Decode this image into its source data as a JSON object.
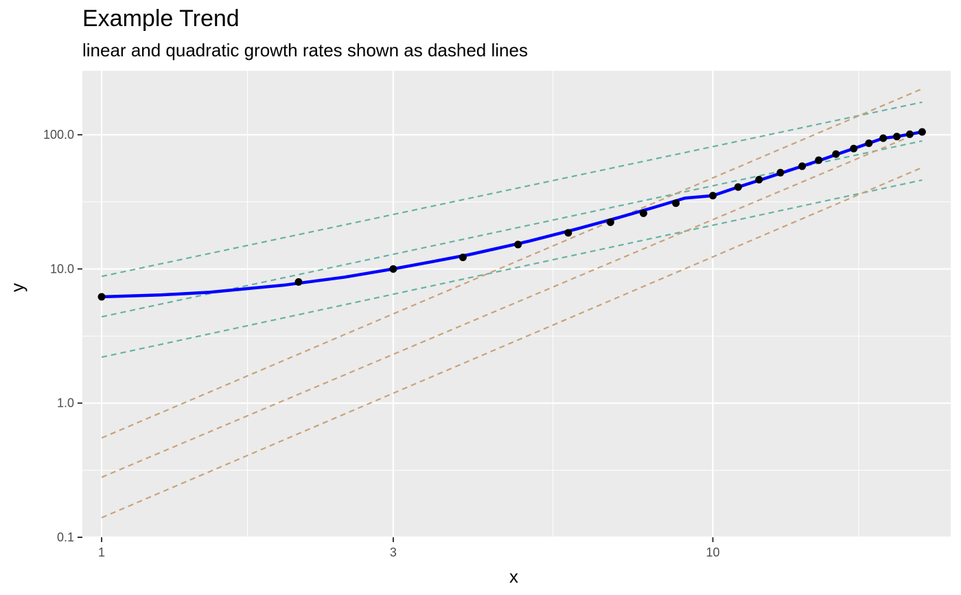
{
  "chart_data": {
    "type": "line",
    "title": "Example Trend",
    "subtitle": "linear and quadratic growth rates shown as dashed lines",
    "xlabel": "x",
    "ylabel": "y",
    "x_scale": "log",
    "y_scale": "log",
    "xlim": [
      0.93,
      24.5
    ],
    "ylim": [
      0.1,
      300
    ],
    "x_ticks": [
      1,
      3,
      10
    ],
    "x_tick_labels": [
      "1",
      "3",
      "10"
    ],
    "y_ticks": [
      0.1,
      1,
      10,
      100
    ],
    "y_tick_labels": [
      "0.1",
      "1.0",
      "10.0",
      "100.0"
    ],
    "grid": true,
    "colors": {
      "panel": "#ebebeb",
      "grid": "#ffffff",
      "curve": "#0000ff",
      "points": "#000000",
      "linear_lines": "#66b2a3",
      "quadratic_lines": "#c8a27a"
    },
    "series": [
      {
        "kind": "curve",
        "x": [
          1,
          1.25,
          1.5,
          2,
          2.5,
          3,
          3.5,
          4,
          5,
          6,
          7,
          8,
          9,
          10,
          11,
          12,
          13,
          14,
          15,
          16,
          17,
          18,
          19,
          20,
          21,
          22
        ],
        "y": [
          6.2,
          6.4,
          6.7,
          7.6,
          8.7,
          10.0,
          11.4,
          12.8,
          16.1,
          19.9,
          24.1,
          28.7,
          33.7,
          35.2,
          40.8,
          46.3,
          52.2,
          58.3,
          64.7,
          71.8,
          78.9,
          86.5,
          94.3,
          97.0,
          101,
          105
        ]
      },
      {
        "kind": "points",
        "x": [
          1,
          2.1,
          3.0,
          3.9,
          4.8,
          5.8,
          6.8,
          7.7,
          8.7,
          10.0,
          11.0,
          11.9,
          12.9,
          14.0,
          14.9,
          15.9,
          17.0,
          18.0,
          19.0,
          20.0,
          21.0,
          22.0
        ],
        "y": [
          6.2,
          8.0,
          10.0,
          12.2,
          15.2,
          18.6,
          22.3,
          26.0,
          30.9,
          35.2,
          40.8,
          46.3,
          52.2,
          58.3,
          64.7,
          71.8,
          78.9,
          86.5,
          94.3,
          97.0,
          101,
          105
        ]
      },
      {
        "kind": "reference",
        "group": "linear",
        "lines": [
          {
            "x": [
              1,
              22
            ],
            "y": [
              8.8,
              175
            ]
          },
          {
            "x": [
              1,
              22
            ],
            "y": [
              4.4,
              90
            ]
          },
          {
            "x": [
              1,
              22
            ],
            "y": [
              2.2,
              46
            ]
          }
        ]
      },
      {
        "kind": "reference",
        "group": "quadratic",
        "lines": [
          {
            "x": [
              1,
              22
            ],
            "y": [
              0.55,
              220
            ]
          },
          {
            "x": [
              1,
              22
            ],
            "y": [
              0.28,
              106
            ]
          },
          {
            "x": [
              1,
              22
            ],
            "y": [
              0.14,
              57
            ]
          }
        ]
      }
    ]
  }
}
